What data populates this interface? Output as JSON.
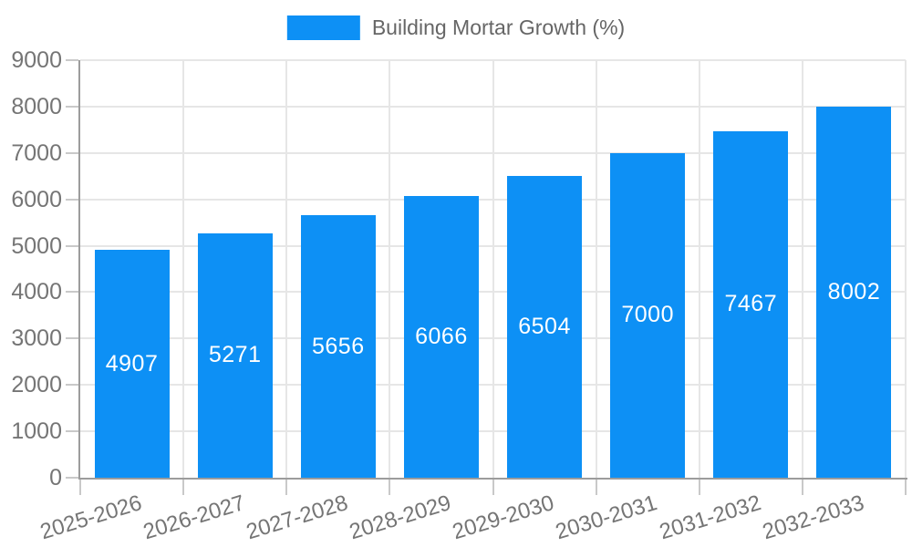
{
  "legend": {
    "label": "Building Mortar Growth (%)"
  },
  "chart_data": {
    "type": "bar",
    "series_name": "Building Mortar Growth (%)",
    "title": "",
    "xlabel": "",
    "ylabel": "",
    "categories": [
      "2025-2026",
      "2026-2027",
      "2027-2028",
      "2028-2029",
      "2029-2030",
      "2030-2031",
      "2031-2032",
      "2032-2033"
    ],
    "values": [
      4907,
      5271,
      5656,
      6066,
      6504,
      7000,
      7467,
      8002
    ],
    "bar_labels": [
      "4907",
      "5271",
      "5656",
      "6066",
      "6504",
      "7000",
      "7467",
      "8002"
    ],
    "ylim": [
      0,
      9000
    ],
    "ytick_step": 1000,
    "yticks": [
      "0",
      "1000",
      "2000",
      "3000",
      "4000",
      "5000",
      "6000",
      "7000",
      "8000",
      "9000"
    ],
    "grid": true,
    "legend_position": "top",
    "bar_label_position": "center",
    "x_label_rotation_deg": -17
  },
  "colors": {
    "bar": "#0d90f5",
    "bar_label": "#ffffff",
    "grid": "#e6e6e6",
    "axis": "#9c9c9c",
    "tick_mark": "#c9c9c9",
    "tick_text": "#757575",
    "legend_text": "#666666",
    "background": "#ffffff"
  }
}
